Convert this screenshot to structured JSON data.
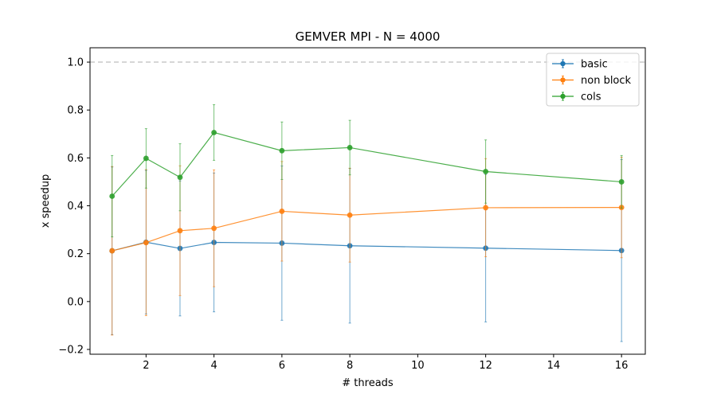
{
  "chart_data": {
    "type": "line",
    "title": "GEMVER MPI - N = 4000",
    "xlabel": "# threads",
    "ylabel": "x speedup",
    "xlim": [
      0.35,
      16.7
    ],
    "ylim": [
      -0.22,
      1.06
    ],
    "xticks": [
      2,
      4,
      6,
      8,
      10,
      12,
      14,
      16
    ],
    "yticks": [
      -0.2,
      0.0,
      0.2,
      0.4,
      0.6,
      0.8,
      1.0
    ],
    "xtick_labels": [
      "2",
      "4",
      "6",
      "8",
      "10",
      "12",
      "14",
      "16"
    ],
    "ytick_labels": [
      "−0.2",
      "0.0",
      "0.2",
      "0.4",
      "0.6",
      "0.8",
      "1.0"
    ],
    "reference_line": {
      "y": 1.0,
      "style": "dashed",
      "color": "#c8c8c8"
    },
    "legend_position": "top-right",
    "x": [
      1,
      2,
      3,
      4,
      6,
      8,
      12,
      16
    ],
    "series": [
      {
        "name": "basic",
        "color": "#1f77b4",
        "values": [
          0.212,
          0.248,
          0.222,
          0.247,
          0.244,
          0.233,
          0.223,
          0.213
        ],
        "err": [
          0.35,
          0.3,
          0.282,
          0.29,
          0.322,
          0.323,
          0.308,
          0.38
        ]
      },
      {
        "name": "non block",
        "color": "#ff7f0e",
        "values": [
          0.212,
          0.246,
          0.296,
          0.306,
          0.377,
          0.361,
          0.392,
          0.393
        ],
        "err": [
          0.352,
          0.305,
          0.271,
          0.244,
          0.208,
          0.196,
          0.205,
          0.21
        ]
      },
      {
        "name": "cols",
        "color": "#2ca02c",
        "values": [
          0.44,
          0.598,
          0.519,
          0.706,
          0.63,
          0.643,
          0.543,
          0.5
        ],
        "err": [
          0.17,
          0.124,
          0.14,
          0.116,
          0.12,
          0.114,
          0.132,
          0.11
        ]
      }
    ]
  }
}
